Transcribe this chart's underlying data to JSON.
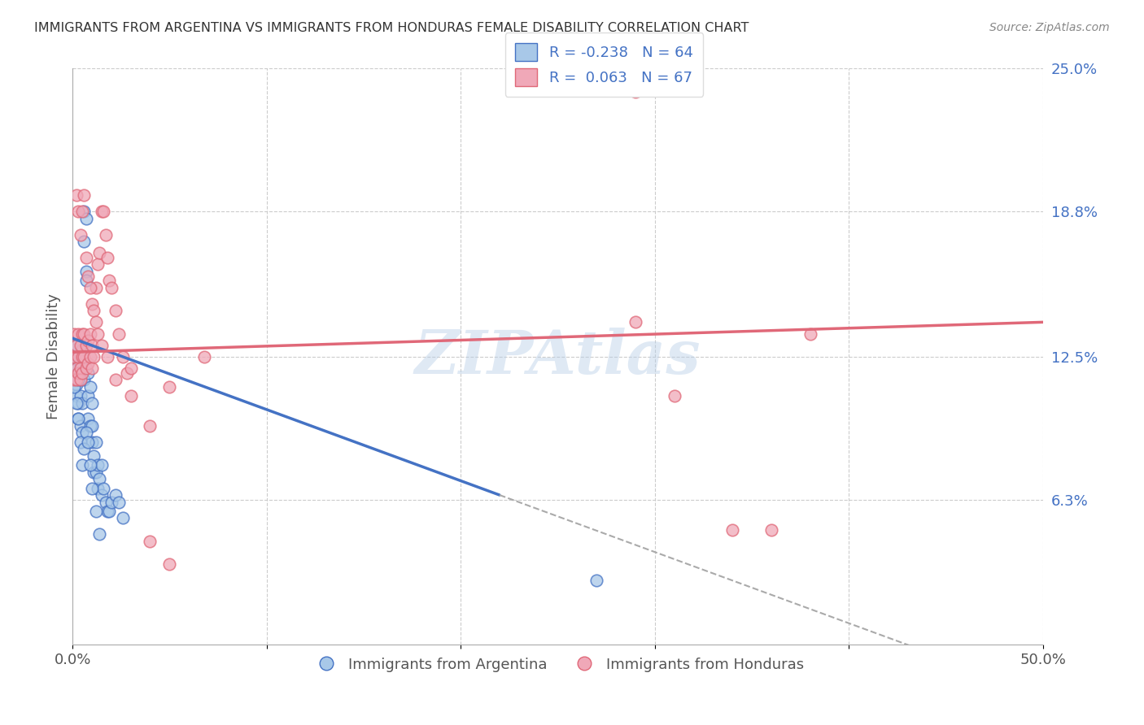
{
  "title": "IMMIGRANTS FROM ARGENTINA VS IMMIGRANTS FROM HONDURAS FEMALE DISABILITY CORRELATION CHART",
  "source": "Source: ZipAtlas.com",
  "ylabel": "Female Disability",
  "xlim": [
    0.0,
    0.5
  ],
  "ylim": [
    0.0,
    0.25
  ],
  "legend1_label": "R = -0.238   N = 64",
  "legend2_label": "R =  0.063   N = 67",
  "color_argentina": "#a8c8e8",
  "color_honduras": "#f0a8b8",
  "color_line_argentina": "#4472c4",
  "color_line_honduras": "#e06878",
  "color_right_labels": "#4472c4",
  "watermark": "ZIPAtlas",
  "bottom_legend1": "Immigrants from Argentina",
  "bottom_legend2": "Immigrants from Honduras",
  "arg_line_x0": 0.0,
  "arg_line_y0": 0.133,
  "arg_line_x1": 0.22,
  "arg_line_y1": 0.065,
  "hon_line_x0": 0.0,
  "hon_line_y0": 0.127,
  "hon_line_x1": 0.5,
  "hon_line_y1": 0.14,
  "argentina_x": [
    0.001,
    0.001,
    0.001,
    0.002,
    0.002,
    0.002,
    0.002,
    0.003,
    0.003,
    0.003,
    0.003,
    0.004,
    0.004,
    0.004,
    0.004,
    0.005,
    0.005,
    0.005,
    0.005,
    0.006,
    0.006,
    0.006,
    0.007,
    0.007,
    0.007,
    0.008,
    0.008,
    0.008,
    0.009,
    0.009,
    0.01,
    0.01,
    0.01,
    0.011,
    0.011,
    0.012,
    0.012,
    0.013,
    0.013,
    0.014,
    0.015,
    0.015,
    0.016,
    0.017,
    0.018,
    0.019,
    0.02,
    0.022,
    0.024,
    0.026,
    0.001,
    0.002,
    0.003,
    0.003,
    0.004,
    0.005,
    0.006,
    0.007,
    0.008,
    0.009,
    0.01,
    0.012,
    0.014,
    0.27
  ],
  "argentina_y": [
    0.128,
    0.122,
    0.115,
    0.13,
    0.12,
    0.113,
    0.108,
    0.125,
    0.118,
    0.105,
    0.098,
    0.115,
    0.122,
    0.108,
    0.095,
    0.128,
    0.118,
    0.105,
    0.092,
    0.115,
    0.188,
    0.175,
    0.162,
    0.158,
    0.185,
    0.118,
    0.108,
    0.098,
    0.112,
    0.095,
    0.105,
    0.095,
    0.088,
    0.082,
    0.075,
    0.088,
    0.075,
    0.078,
    0.068,
    0.072,
    0.078,
    0.065,
    0.068,
    0.062,
    0.058,
    0.058,
    0.062,
    0.065,
    0.062,
    0.055,
    0.112,
    0.105,
    0.098,
    0.115,
    0.088,
    0.078,
    0.085,
    0.092,
    0.088,
    0.078,
    0.068,
    0.058,
    0.048,
    0.028
  ],
  "honduras_x": [
    0.001,
    0.001,
    0.001,
    0.002,
    0.002,
    0.002,
    0.003,
    0.003,
    0.003,
    0.004,
    0.004,
    0.004,
    0.005,
    0.005,
    0.005,
    0.006,
    0.006,
    0.007,
    0.007,
    0.008,
    0.008,
    0.009,
    0.009,
    0.01,
    0.01,
    0.011,
    0.012,
    0.013,
    0.014,
    0.015,
    0.016,
    0.017,
    0.018,
    0.019,
    0.02,
    0.022,
    0.024,
    0.026,
    0.028,
    0.03,
    0.002,
    0.003,
    0.004,
    0.005,
    0.006,
    0.007,
    0.008,
    0.009,
    0.01,
    0.011,
    0.012,
    0.013,
    0.015,
    0.018,
    0.022,
    0.03,
    0.04,
    0.05,
    0.34,
    0.29,
    0.36,
    0.04,
    0.068,
    0.05,
    0.38,
    0.31,
    0.29
  ],
  "honduras_y": [
    0.135,
    0.125,
    0.115,
    0.13,
    0.12,
    0.115,
    0.135,
    0.125,
    0.118,
    0.13,
    0.12,
    0.115,
    0.135,
    0.125,
    0.118,
    0.135,
    0.125,
    0.13,
    0.12,
    0.132,
    0.122,
    0.135,
    0.125,
    0.13,
    0.12,
    0.125,
    0.155,
    0.165,
    0.17,
    0.188,
    0.188,
    0.178,
    0.168,
    0.158,
    0.155,
    0.145,
    0.135,
    0.125,
    0.118,
    0.108,
    0.195,
    0.188,
    0.178,
    0.188,
    0.195,
    0.168,
    0.16,
    0.155,
    0.148,
    0.145,
    0.14,
    0.135,
    0.13,
    0.125,
    0.115,
    0.12,
    0.095,
    0.112,
    0.05,
    0.24,
    0.05,
    0.045,
    0.125,
    0.035,
    0.135,
    0.108,
    0.14
  ]
}
